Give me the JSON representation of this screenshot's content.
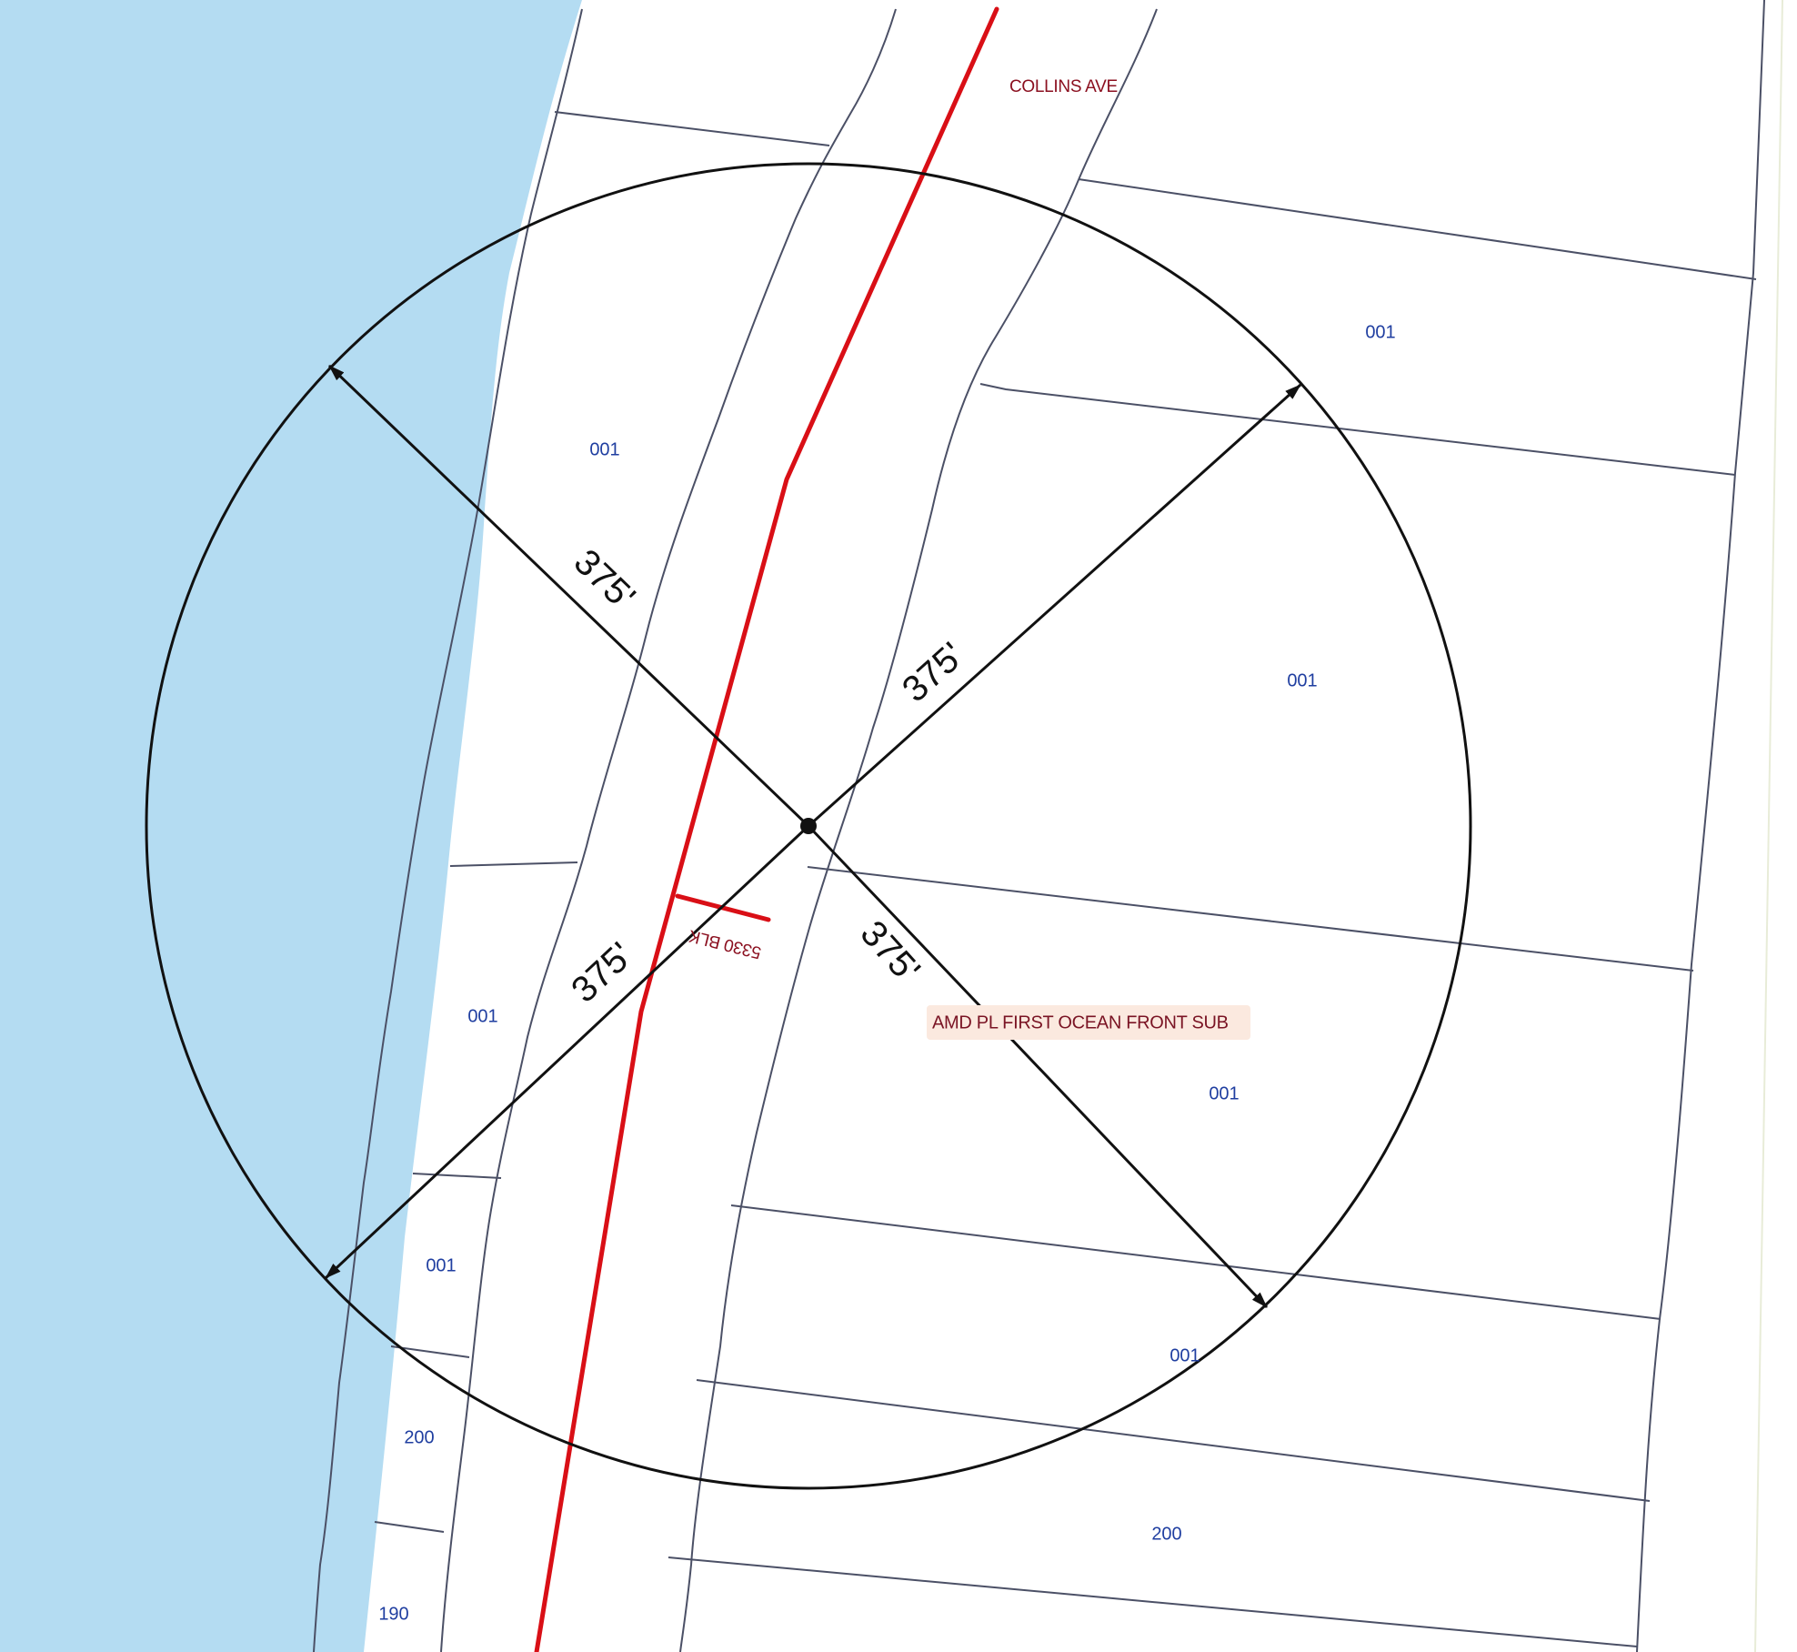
{
  "map": {
    "street_name": "COLLINS AVE",
    "block_label": "5330 BLK",
    "subdivision_label": "AMD PL FIRST OCEAN FRONT SUB",
    "radius_labels": [
      "375'",
      "375'",
      "375'",
      "375'"
    ],
    "folio_labels": [
      "001",
      "001",
      "001",
      "001",
      "001",
      "001",
      "001",
      "200",
      "200",
      "190"
    ]
  },
  "colors": {
    "water": "#b4dcf2",
    "parcel_line": "#4b5066",
    "street_centerline": "#d90f16",
    "street_label": "#8b1020",
    "folio_label": "#1f3ea0",
    "radius_ring": "#111111",
    "subdivision_label_bg": "#fbe9df"
  },
  "icons": {
    "center_point": "center-point-icon",
    "arrowhead": "arrowhead-icon"
  }
}
